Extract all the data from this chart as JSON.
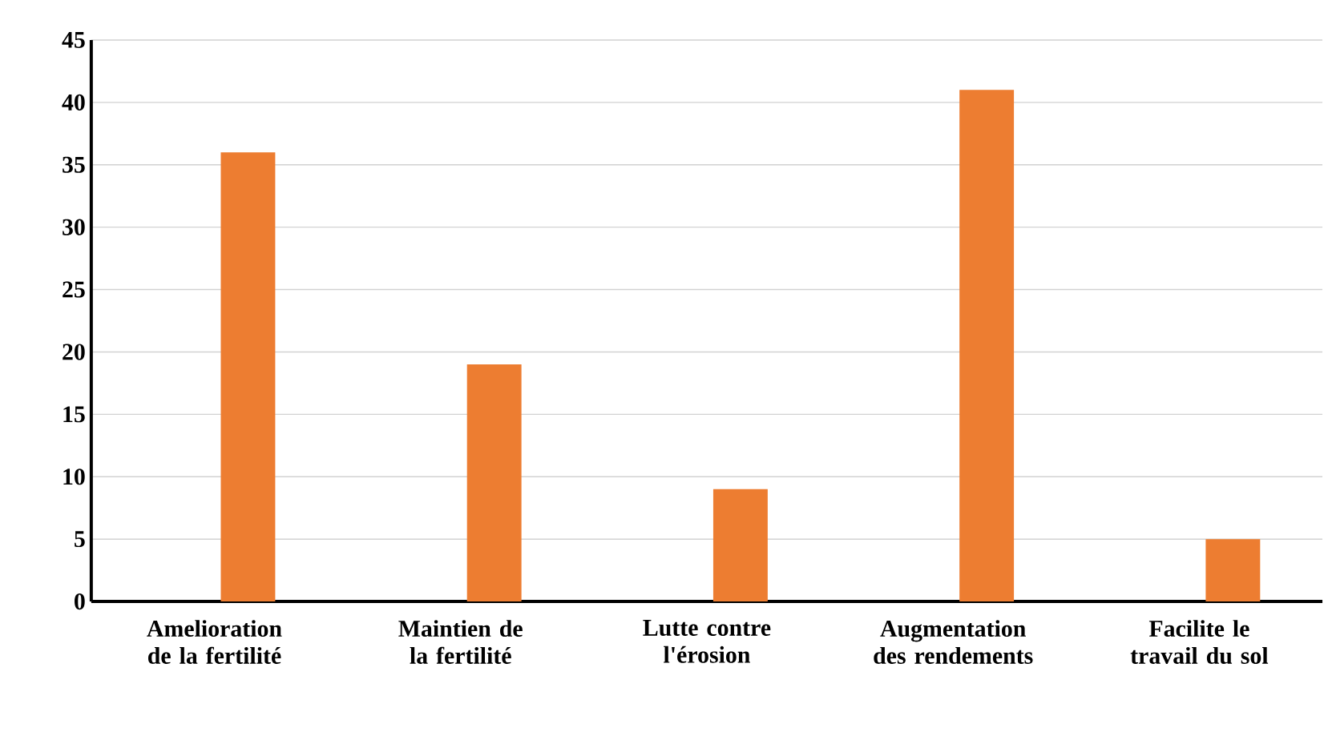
{
  "chart_data": {
    "type": "bar",
    "categories": [
      "Amelioration de la fertilité",
      "Maintien de la fertilité",
      "Lutte contre l'érosion",
      "Augmentation des rendements",
      "Facilite le travail du sol"
    ],
    "values": [
      36,
      19,
      9,
      41,
      5
    ],
    "color": "#ed7d31",
    "ylim": [
      0,
      45
    ],
    "yticks": [
      0,
      5,
      10,
      15,
      20,
      25,
      30,
      35,
      40,
      45
    ],
    "grid": "y"
  }
}
